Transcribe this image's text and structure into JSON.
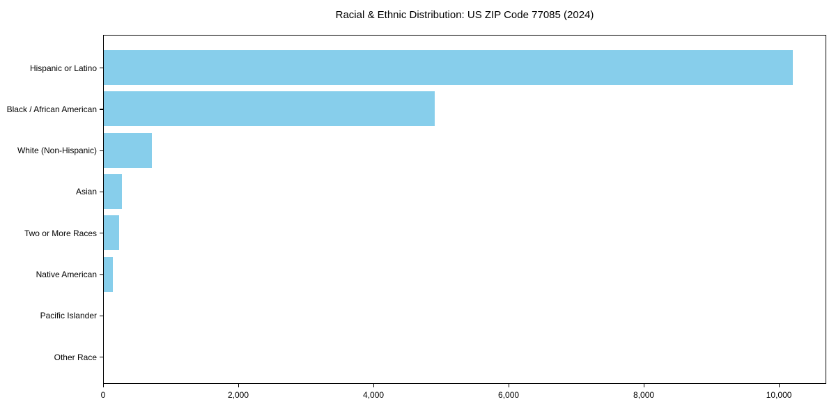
{
  "figure": {
    "background": "#ffffff"
  },
  "chart_data": {
    "type": "bar",
    "orientation": "horizontal",
    "title": "Racial & Ethnic Distribution: US ZIP Code 77085 (2024)",
    "categories": [
      "Hispanic or Latino",
      "Black / African American",
      "White (Non-Hispanic)",
      "Asian",
      "Two or More Races",
      "Native American",
      "Pacific Islander",
      "Other Race"
    ],
    "values": [
      10200,
      4900,
      710,
      265,
      230,
      130,
      0,
      0
    ],
    "xlabel": "",
    "ylabel": "",
    "xlim": [
      0,
      10700
    ],
    "x_ticks": [
      0,
      2000,
      4000,
      6000,
      8000,
      10000
    ],
    "x_tick_labels": [
      "0",
      "2,000",
      "4,000",
      "6,000",
      "8,000",
      "10,000"
    ],
    "bar_color": "#87CEEB",
    "axis_color": "#000000",
    "text_color": "#000000",
    "grid": false,
    "legend": null
  }
}
